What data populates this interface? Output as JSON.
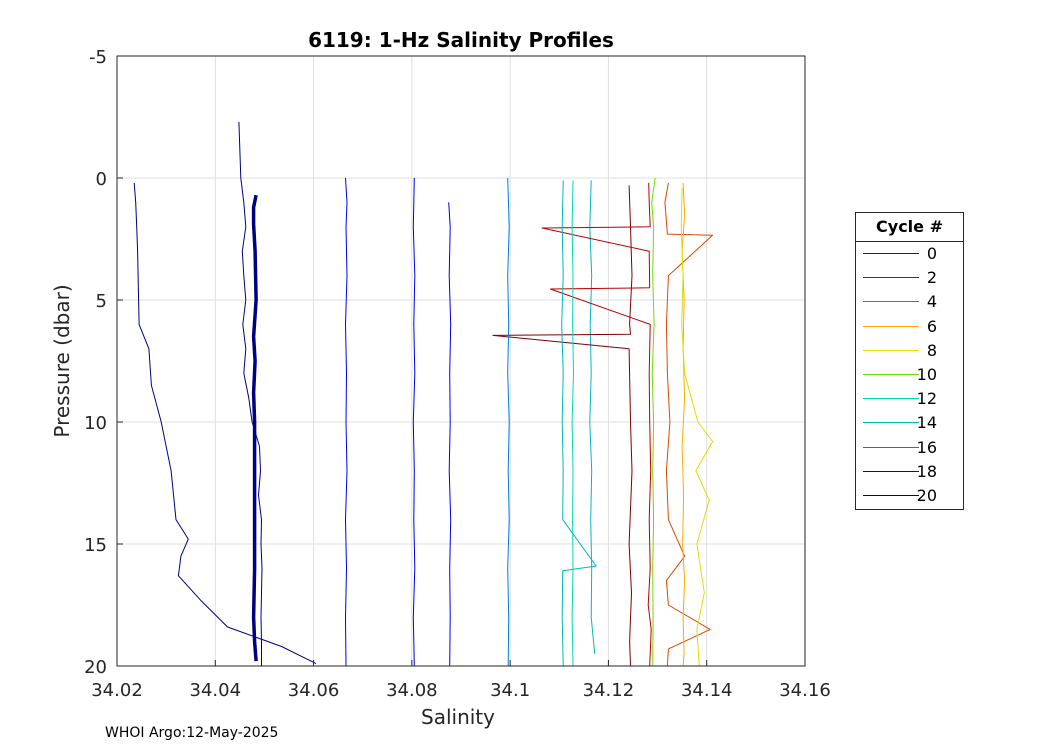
{
  "chart_data": {
    "type": "line",
    "title": "6119: 1-Hz Salinity Profiles",
    "xlabel": "Salinity",
    "ylabel": "Pressure (dbar)",
    "xlim": [
      34.02,
      34.16
    ],
    "ylim": [
      -5,
      20
    ],
    "y_reversed": true,
    "xticks": [
      "34.02",
      "34.04",
      "34.06",
      "34.08",
      "34.1",
      "34.12",
      "34.14",
      "34.16"
    ],
    "yticks": [
      "-5",
      "0",
      "5",
      "10",
      "15",
      "20"
    ],
    "grid": true,
    "legend": {
      "title": "Cycle #",
      "placement": "outside-right"
    },
    "series": [
      {
        "name": "0",
        "color": "#800000",
        "width": 1.0,
        "p": [
          0.3,
          2,
          4,
          6,
          6.4,
          6.45,
          7,
          10,
          12,
          15,
          17,
          19,
          20
        ],
        "s": [
          34.1242,
          34.1245,
          34.1248,
          34.1243,
          34.1245,
          34.0965,
          34.1242,
          34.1245,
          34.1248,
          34.1242,
          34.1247,
          34.1243,
          34.1245
        ]
      },
      {
        "name": "2",
        "color": "#b80000",
        "width": 1.0,
        "p": [
          0.2,
          1.0,
          2.0,
          2.05,
          3,
          4.5,
          4.55,
          6,
          8,
          10,
          12,
          14,
          16,
          17.5,
          18.5,
          20
        ],
        "s": [
          34.1282,
          34.1283,
          34.1285,
          34.1065,
          34.1283,
          34.1284,
          34.1082,
          34.1285,
          34.1283,
          34.1284,
          34.1286,
          34.1283,
          34.1285,
          34.1281,
          34.1287,
          34.1284
        ]
      },
      {
        "name": "4",
        "color": "#d84a00",
        "width": 1.0,
        "p": [
          0.2,
          1,
          2.3,
          2.35,
          4,
          6,
          8,
          10,
          12,
          14,
          15.5,
          16.5,
          17.5,
          18.5,
          19.3,
          20
        ],
        "s": [
          34.1322,
          34.1315,
          34.132,
          34.1412,
          34.1322,
          34.1318,
          34.132,
          34.1325,
          34.1318,
          34.1322,
          34.1355,
          34.1318,
          34.1322,
          34.1407,
          34.1322,
          34.132
        ]
      },
      {
        "name": "6",
        "color": "#ffaa00",
        "width": 1.0,
        "p": [
          0.2,
          1.5,
          3,
          5,
          7,
          9,
          11,
          13,
          15,
          16.5,
          18,
          19.5,
          20
        ],
        "s": [
          34.1352,
          34.1355,
          34.135,
          34.1354,
          34.1352,
          34.1355,
          34.135,
          34.1353,
          34.1351,
          34.1355,
          34.1352,
          34.1354,
          34.1352
        ]
      },
      {
        "name": "8",
        "color": "#dede00",
        "width": 1.0,
        "p": [
          0.4,
          2,
          4,
          6,
          8,
          10,
          10.8,
          12,
          13.2,
          15,
          17,
          18.5,
          20
        ],
        "s": [
          34.135,
          34.1348,
          34.1352,
          34.1349,
          34.1355,
          34.1382,
          34.1412,
          34.1378,
          34.1405,
          34.138,
          34.1395,
          34.138,
          34.1385
        ]
      },
      {
        "name": "10",
        "color": "#6edd00",
        "width": 1.0,
        "p": [
          0,
          1,
          2,
          4,
          6,
          8,
          10,
          12,
          14,
          16,
          18,
          20
        ],
        "s": [
          34.1295,
          34.1288,
          34.1292,
          34.129,
          34.1293,
          34.1289,
          34.1292,
          34.129,
          34.1292,
          34.129,
          34.1291,
          34.129
        ]
      },
      {
        "name": "12",
        "color": "#00dca6",
        "width": 1.0,
        "p": [
          0.1,
          2,
          4,
          6,
          8,
          10,
          12,
          14,
          16,
          18,
          20
        ],
        "s": [
          34.1128,
          34.1126,
          34.1128,
          34.1127,
          34.1129,
          34.1126,
          34.1128,
          34.1127,
          34.1128,
          34.1126,
          34.1128
        ]
      },
      {
        "name": "14",
        "color": "#00b8c0",
        "width": 1.0,
        "p": [
          0.1,
          2,
          4,
          6,
          8,
          10,
          12,
          14,
          15.9,
          16.1,
          18,
          20
        ],
        "s": [
          34.1108,
          34.1106,
          34.1108,
          34.1105,
          34.1108,
          34.1106,
          34.1108,
          34.1107,
          34.1175,
          34.1107,
          34.1106,
          34.1108
        ]
      },
      {
        "name": "16",
        "color": "#0080d0",
        "width": 1.0,
        "p": [
          0,
          2,
          4,
          6,
          8,
          10,
          12,
          14,
          16,
          18,
          20
        ],
        "s": [
          34.0995,
          34.0998,
          34.0995,
          34.0997,
          34.0995,
          34.0998,
          34.0996,
          34.0998,
          34.0995,
          34.0997,
          34.0996
        ]
      },
      {
        "name": "18",
        "color": "#0000ee",
        "width": 1.0,
        "p": [
          0,
          2,
          4,
          6,
          8,
          10,
          12,
          14,
          16,
          18,
          20
        ],
        "s": [
          34.0805,
          34.0803,
          34.0806,
          34.0804,
          34.0806,
          34.0803,
          34.0805,
          34.0804,
          34.0806,
          34.0803,
          34.0805
        ]
      },
      {
        "name": "20",
        "color": "#000080",
        "width": 1.0,
        "p": [
          0.2,
          1,
          2,
          3,
          4,
          6,
          7,
          8.5,
          10,
          12,
          14,
          14.8,
          15.5,
          16.3,
          17.3,
          18.4,
          19.2,
          19.9
        ],
        "s": [
          34.0235,
          34.0238,
          34.024,
          34.0242,
          34.0243,
          34.0245,
          34.0265,
          34.027,
          34.029,
          34.031,
          34.032,
          34.0345,
          34.033,
          34.0325,
          34.037,
          34.0425,
          34.0535,
          34.0605
        ]
      }
    ],
    "extra_lines": [
      {
        "color": "#0000ee",
        "width": 1.0,
        "p": [
          0,
          1,
          2,
          4,
          6,
          8,
          10,
          12,
          14,
          16,
          18,
          20
        ],
        "s": [
          34.0665,
          34.0668,
          34.0666,
          34.0668,
          34.0665,
          34.0667,
          34.0666,
          34.0668,
          34.0665,
          34.0667,
          34.0665,
          34.0666
        ]
      },
      {
        "color": "#0000ee",
        "width": 1.0,
        "p": [
          1,
          2,
          4,
          6,
          8,
          10,
          12,
          14,
          16,
          18,
          20
        ],
        "s": [
          34.0875,
          34.0878,
          34.0876,
          34.0879,
          34.0877,
          34.0878,
          34.0876,
          34.0879,
          34.0877,
          34.0878,
          34.0877
        ]
      },
      {
        "color": "#00b8c0",
        "width": 1.0,
        "p": [
          0.1,
          2,
          4,
          6,
          8,
          10,
          12,
          14,
          16,
          18,
          19.5
        ],
        "s": [
          34.1165,
          34.1162,
          34.1166,
          34.1163,
          34.1165,
          34.1162,
          34.1166,
          34.1164,
          34.1166,
          34.1165,
          34.1172
        ]
      },
      {
        "color": "#000080",
        "width": 1.0,
        "p": [
          -2.3,
          0,
          1,
          2,
          3,
          4,
          5,
          6,
          7,
          8,
          9,
          10,
          11,
          12,
          13,
          14,
          15,
          16,
          17,
          18,
          19,
          20
        ],
        "s": [
          34.0448,
          34.0452,
          34.0458,
          34.0462,
          34.0455,
          34.0458,
          34.0462,
          34.0456,
          34.0462,
          34.0458,
          34.0468,
          34.0475,
          34.049,
          34.0492,
          34.0488,
          34.0494,
          34.0493,
          34.0495,
          34.0494,
          34.0493,
          34.0494,
          34.0494
        ]
      },
      {
        "color": "#000080",
        "width": 3.5,
        "p": [
          0.7,
          1.2,
          1.9,
          3,
          5,
          6.5,
          7.5,
          8.8,
          10,
          12,
          14,
          16,
          18,
          19,
          19.8
        ],
        "s": [
          34.0483,
          34.0478,
          34.0478,
          34.0481,
          34.0483,
          34.0478,
          34.0481,
          34.0478,
          34.048,
          34.048,
          34.048,
          34.048,
          34.0478,
          34.048,
          34.0483
        ]
      }
    ]
  },
  "credit": "WHOI Argo:12-May-2025"
}
